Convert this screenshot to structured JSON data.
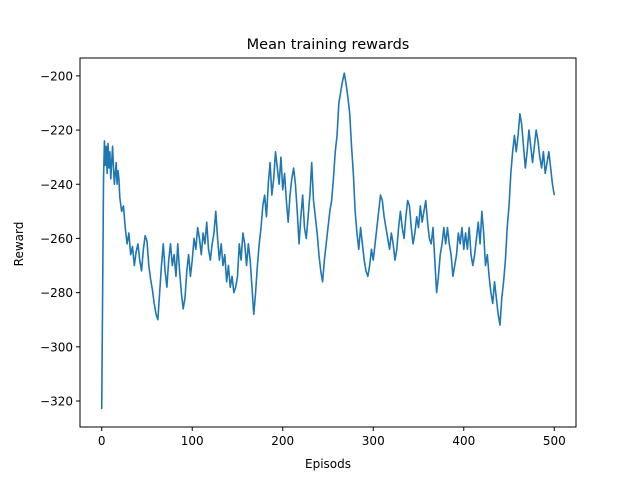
{
  "chart_data": {
    "type": "line",
    "title": "Mean training rewards",
    "xlabel": "Episods",
    "ylabel": "Reward",
    "xlim": [
      -24,
      524
    ],
    "ylim": [
      -329.6,
      -193.4
    ],
    "xticks": [
      0,
      100,
      200,
      300,
      400,
      500
    ],
    "yticks": [
      -200,
      -220,
      -240,
      -260,
      -280,
      -300,
      -320
    ],
    "grid": false,
    "legend": "none",
    "series": [
      {
        "color": "#1f77b4",
        "points": [
          [
            0,
            -323
          ],
          [
            1,
            -280
          ],
          [
            2,
            -238
          ],
          [
            3,
            -224
          ],
          [
            4,
            -233
          ],
          [
            5,
            -226
          ],
          [
            6,
            -236
          ],
          [
            7,
            -225
          ],
          [
            8,
            -234
          ],
          [
            9,
            -228
          ],
          [
            10,
            -238
          ],
          [
            11,
            -232
          ],
          [
            12,
            -226
          ],
          [
            13,
            -234
          ],
          [
            14,
            -240
          ],
          [
            15,
            -236
          ],
          [
            16,
            -232
          ],
          [
            17,
            -240
          ],
          [
            18,
            -235
          ],
          [
            19,
            -238
          ],
          [
            20,
            -245
          ],
          [
            22,
            -250
          ],
          [
            24,
            -248
          ],
          [
            26,
            -256
          ],
          [
            28,
            -262
          ],
          [
            30,
            -258
          ],
          [
            32,
            -266
          ],
          [
            34,
            -263
          ],
          [
            36,
            -270
          ],
          [
            38,
            -265
          ],
          [
            40,
            -262
          ],
          [
            42,
            -268
          ],
          [
            44,
            -272
          ],
          [
            46,
            -264
          ],
          [
            48,
            -259
          ],
          [
            50,
            -261
          ],
          [
            52,
            -270
          ],
          [
            54,
            -275
          ],
          [
            56,
            -279
          ],
          [
            58,
            -284
          ],
          [
            60,
            -288
          ],
          [
            62,
            -290
          ],
          [
            64,
            -280
          ],
          [
            66,
            -270
          ],
          [
            68,
            -262
          ],
          [
            70,
            -272
          ],
          [
            72,
            -278
          ],
          [
            74,
            -268
          ],
          [
            76,
            -262
          ],
          [
            78,
            -270
          ],
          [
            80,
            -266
          ],
          [
            82,
            -274
          ],
          [
            84,
            -262
          ],
          [
            86,
            -272
          ],
          [
            88,
            -280
          ],
          [
            90,
            -286
          ],
          [
            92,
            -282
          ],
          [
            94,
            -272
          ],
          [
            96,
            -266
          ],
          [
            98,
            -274
          ],
          [
            100,
            -268
          ],
          [
            102,
            -260
          ],
          [
            104,
            -264
          ],
          [
            106,
            -256
          ],
          [
            108,
            -260
          ],
          [
            110,
            -266
          ],
          [
            112,
            -258
          ],
          [
            114,
            -262
          ],
          [
            116,
            -254
          ],
          [
            118,
            -264
          ],
          [
            120,
            -268
          ],
          [
            122,
            -262
          ],
          [
            124,
            -258
          ],
          [
            126,
            -250
          ],
          [
            128,
            -260
          ],
          [
            130,
            -268
          ],
          [
            132,
            -262
          ],
          [
            134,
            -270
          ],
          [
            136,
            -266
          ],
          [
            138,
            -276
          ],
          [
            140,
            -270
          ],
          [
            142,
            -278
          ],
          [
            144,
            -274
          ],
          [
            146,
            -280
          ],
          [
            148,
            -278
          ],
          [
            150,
            -274
          ],
          [
            152,
            -262
          ],
          [
            154,
            -268
          ],
          [
            156,
            -258
          ],
          [
            158,
            -262
          ],
          [
            160,
            -270
          ],
          [
            162,
            -262
          ],
          [
            164,
            -268
          ],
          [
            166,
            -278
          ],
          [
            168,
            -288
          ],
          [
            170,
            -280
          ],
          [
            172,
            -270
          ],
          [
            174,
            -262
          ],
          [
            176,
            -256
          ],
          [
            178,
            -248
          ],
          [
            180,
            -244
          ],
          [
            182,
            -252
          ],
          [
            184,
            -240
          ],
          [
            186,
            -232
          ],
          [
            188,
            -244
          ],
          [
            190,
            -238
          ],
          [
            192,
            -228
          ],
          [
            194,
            -234
          ],
          [
            196,
            -240
          ],
          [
            198,
            -230
          ],
          [
            200,
            -242
          ],
          [
            202,
            -236
          ],
          [
            204,
            -246
          ],
          [
            206,
            -254
          ],
          [
            208,
            -244
          ],
          [
            210,
            -238
          ],
          [
            212,
            -234
          ],
          [
            214,
            -240
          ],
          [
            216,
            -250
          ],
          [
            218,
            -262
          ],
          [
            220,
            -252
          ],
          [
            222,
            -244
          ],
          [
            224,
            -256
          ],
          [
            226,
            -260
          ],
          [
            228,
            -252
          ],
          [
            230,
            -244
          ],
          [
            232,
            -232
          ],
          [
            234,
            -246
          ],
          [
            236,
            -252
          ],
          [
            238,
            -258
          ],
          [
            240,
            -266
          ],
          [
            242,
            -272
          ],
          [
            244,
            -276
          ],
          [
            246,
            -268
          ],
          [
            248,
            -262
          ],
          [
            250,
            -256
          ],
          [
            252,
            -250
          ],
          [
            254,
            -246
          ],
          [
            256,
            -238
          ],
          [
            258,
            -228
          ],
          [
            260,
            -222
          ],
          [
            262,
            -210
          ],
          [
            264,
            -206
          ],
          [
            266,
            -202
          ],
          [
            268,
            -199
          ],
          [
            270,
            -203
          ],
          [
            272,
            -208
          ],
          [
            274,
            -214
          ],
          [
            276,
            -226
          ],
          [
            278,
            -236
          ],
          [
            280,
            -250
          ],
          [
            282,
            -258
          ],
          [
            284,
            -264
          ],
          [
            286,
            -256
          ],
          [
            288,
            -262
          ],
          [
            290,
            -268
          ],
          [
            292,
            -272
          ],
          [
            294,
            -274
          ],
          [
            296,
            -270
          ],
          [
            298,
            -264
          ],
          [
            300,
            -268
          ],
          [
            302,
            -262
          ],
          [
            304,
            -256
          ],
          [
            306,
            -250
          ],
          [
            308,
            -244
          ],
          [
            310,
            -246
          ],
          [
            312,
            -252
          ],
          [
            314,
            -256
          ],
          [
            316,
            -260
          ],
          [
            318,
            -264
          ],
          [
            320,
            -258
          ],
          [
            322,
            -262
          ],
          [
            324,
            -268
          ],
          [
            326,
            -264
          ],
          [
            328,
            -256
          ],
          [
            330,
            -250
          ],
          [
            332,
            -256
          ],
          [
            334,
            -260
          ],
          [
            336,
            -252
          ],
          [
            338,
            -246
          ],
          [
            340,
            -248
          ],
          [
            342,
            -256
          ],
          [
            344,
            -262
          ],
          [
            346,
            -258
          ],
          [
            348,
            -252
          ],
          [
            350,
            -256
          ],
          [
            352,
            -248
          ],
          [
            354,
            -254
          ],
          [
            356,
            -250
          ],
          [
            358,
            -246
          ],
          [
            360,
            -254
          ],
          [
            362,
            -260
          ],
          [
            364,
            -262
          ],
          [
            366,
            -256
          ],
          [
            368,
            -268
          ],
          [
            370,
            -280
          ],
          [
            372,
            -274
          ],
          [
            374,
            -266
          ],
          [
            376,
            -262
          ],
          [
            378,
            -256
          ],
          [
            380,
            -262
          ],
          [
            382,
            -256
          ],
          [
            384,
            -262
          ],
          [
            386,
            -266
          ],
          [
            388,
            -274
          ],
          [
            390,
            -270
          ],
          [
            392,
            -266
          ],
          [
            394,
            -258
          ],
          [
            396,
            -262
          ],
          [
            398,
            -256
          ],
          [
            400,
            -264
          ],
          [
            402,
            -258
          ],
          [
            404,
            -264
          ],
          [
            406,
            -256
          ],
          [
            408,
            -266
          ],
          [
            410,
            -270
          ],
          [
            412,
            -266
          ],
          [
            414,
            -260
          ],
          [
            416,
            -254
          ],
          [
            418,
            -262
          ],
          [
            420,
            -250
          ],
          [
            422,
            -258
          ],
          [
            424,
            -270
          ],
          [
            426,
            -266
          ],
          [
            428,
            -274
          ],
          [
            430,
            -280
          ],
          [
            432,
            -284
          ],
          [
            434,
            -276
          ],
          [
            436,
            -282
          ],
          [
            438,
            -288
          ],
          [
            440,
            -292
          ],
          [
            442,
            -282
          ],
          [
            444,
            -276
          ],
          [
            446,
            -268
          ],
          [
            448,
            -256
          ],
          [
            450,
            -248
          ],
          [
            452,
            -236
          ],
          [
            454,
            -228
          ],
          [
            456,
            -222
          ],
          [
            458,
            -228
          ],
          [
            460,
            -222
          ],
          [
            462,
            -214
          ],
          [
            464,
            -218
          ],
          [
            466,
            -226
          ],
          [
            468,
            -234
          ],
          [
            470,
            -228
          ],
          [
            472,
            -220
          ],
          [
            474,
            -226
          ],
          [
            476,
            -232
          ],
          [
            478,
            -226
          ],
          [
            480,
            -220
          ],
          [
            482,
            -224
          ],
          [
            484,
            -230
          ],
          [
            486,
            -234
          ],
          [
            488,
            -228
          ],
          [
            490,
            -236
          ],
          [
            492,
            -232
          ],
          [
            494,
            -228
          ],
          [
            496,
            -234
          ],
          [
            498,
            -240
          ],
          [
            500,
            -244
          ]
        ]
      }
    ]
  }
}
